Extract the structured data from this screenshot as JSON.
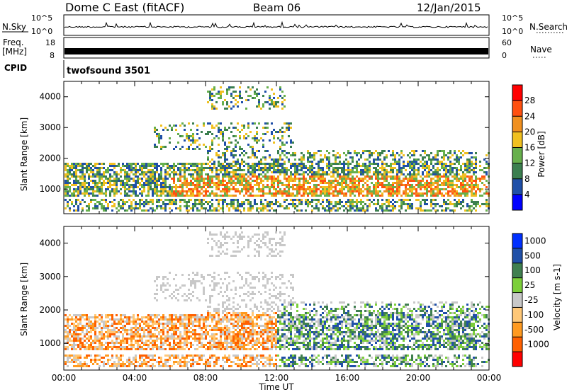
{
  "header": {
    "station": "Dome C East (fitACF)",
    "beam": "Beam 06",
    "date": "12/Jan/2015"
  },
  "top_panels": {
    "nsky_label": "N.Sky",
    "nsky_ticks": [
      "10^5",
      "10^0"
    ],
    "nsearch_label": "N.Search",
    "nsearch_ticks": [
      "10^5",
      "10^0"
    ],
    "freq_label": "Freq.",
    "freq_unit": "[MHz]",
    "freq_ticks": [
      "18",
      "8"
    ],
    "nave_label": "Nave",
    "nave_ticks": [
      "60",
      "0"
    ],
    "cpid_label": "CPID",
    "cpid_value": "twofsound 3501"
  },
  "colors": {
    "power_scale": [
      "#0000ff",
      "#1f4fa8",
      "#3b7f4f",
      "#67b04c",
      "#f0c020",
      "#f09020",
      "#ff5010",
      "#ff0000"
    ],
    "velocity_scale": [
      "#ff0000",
      "#ff6000",
      "#ff9a20",
      "#ffc878",
      "#c8c8c8",
      "#7ccf3a",
      "#3f7f4f",
      "#2050a8",
      "#0030ff"
    ]
  },
  "chart_data": [
    {
      "type": "heatmap",
      "title": "Power",
      "ylabel": "Slant Range [km]",
      "xlabel": "Time UT",
      "x_ticks": [
        "00:00",
        "04:00",
        "08:00",
        "12:00",
        "16:00",
        "20:00",
        "00:00"
      ],
      "y_ticks": [
        "1000",
        "2000",
        "3000",
        "4000"
      ],
      "xlim": [
        0,
        24
      ],
      "ylim": [
        200,
        4500
      ],
      "colorbar_label": "Power [dB]",
      "colorbar_ticks": [
        "4",
        "8",
        "12",
        "16",
        "20",
        "24",
        "28"
      ],
      "colorbar_range": [
        0,
        32
      ]
    },
    {
      "type": "heatmap",
      "title": "Velocity",
      "ylabel": "Slant Range [km]",
      "xlabel": "Time UT",
      "x_ticks": [
        "00:00",
        "04:00",
        "08:00",
        "12:00",
        "16:00",
        "20:00",
        "00:00"
      ],
      "y_ticks": [
        "1000",
        "2000",
        "3000",
        "4000"
      ],
      "xlim": [
        0,
        24
      ],
      "ylim": [
        200,
        4500
      ],
      "colorbar_label": "Velocity [m s-1]",
      "colorbar_ticks": [
        "1000",
        "500",
        "100",
        "25",
        "-25",
        "-100",
        "-500",
        "-1000"
      ]
    }
  ],
  "axis": {
    "xlabel": "Time UT"
  }
}
